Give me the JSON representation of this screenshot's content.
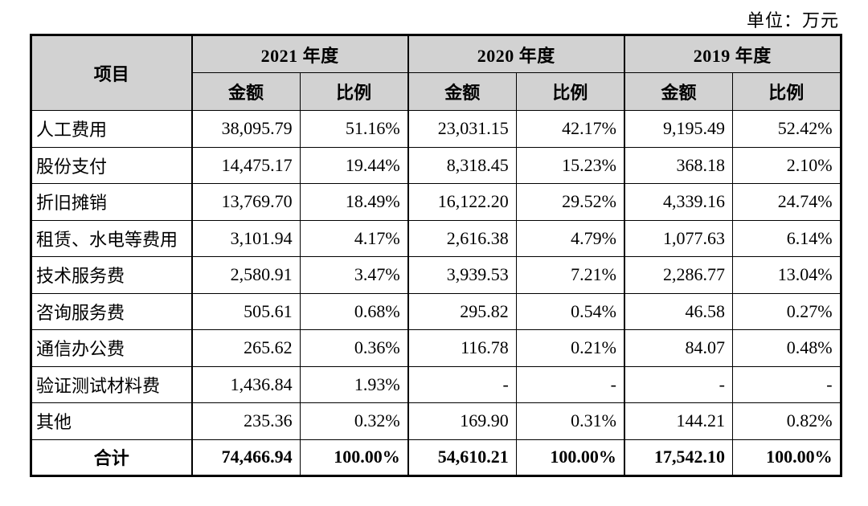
{
  "unit_label": "单位：万元",
  "colors": {
    "header_bg": "#d2d2d2",
    "border": "#000000",
    "text": "#000000",
    "background": "#ffffff"
  },
  "table": {
    "item_header": "项目",
    "year_headers": [
      "2021 年度",
      "2020 年度",
      "2019 年度"
    ],
    "amount_header": "金额",
    "ratio_header": "比例",
    "rows": [
      {
        "item": "人工费用",
        "values": [
          "38,095.79",
          "51.16%",
          "23,031.15",
          "42.17%",
          "9,195.49",
          "52.42%"
        ]
      },
      {
        "item": "股份支付",
        "values": [
          "14,475.17",
          "19.44%",
          "8,318.45",
          "15.23%",
          "368.18",
          "2.10%"
        ]
      },
      {
        "item": "折旧摊销",
        "values": [
          "13,769.70",
          "18.49%",
          "16,122.20",
          "29.52%",
          "4,339.16",
          "24.74%"
        ]
      },
      {
        "item": "租赁、水电等费用",
        "values": [
          "3,101.94",
          "4.17%",
          "2,616.38",
          "4.79%",
          "1,077.63",
          "6.14%"
        ]
      },
      {
        "item": "技术服务费",
        "values": [
          "2,580.91",
          "3.47%",
          "3,939.53",
          "7.21%",
          "2,286.77",
          "13.04%"
        ]
      },
      {
        "item": "咨询服务费",
        "values": [
          "505.61",
          "0.68%",
          "295.82",
          "0.54%",
          "46.58",
          "0.27%"
        ]
      },
      {
        "item": "通信办公费",
        "values": [
          "265.62",
          "0.36%",
          "116.78",
          "0.21%",
          "84.07",
          "0.48%"
        ]
      },
      {
        "item": "验证测试材料费",
        "values": [
          "1,436.84",
          "1.93%",
          "-",
          "-",
          "-",
          "-"
        ]
      },
      {
        "item": "其他",
        "values": [
          "235.36",
          "0.32%",
          "169.90",
          "0.31%",
          "144.21",
          "0.82%"
        ]
      }
    ],
    "total_row": {
      "item": "合计",
      "values": [
        "74,466.94",
        "100.00%",
        "54,610.21",
        "100.00%",
        "17,542.10",
        "100.00%"
      ]
    }
  }
}
